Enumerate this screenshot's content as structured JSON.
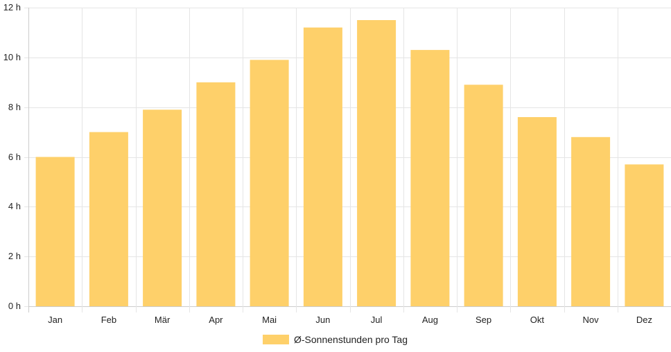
{
  "chart_data": {
    "type": "bar",
    "categories": [
      "Jan",
      "Feb",
      "Mär",
      "Apr",
      "Mai",
      "Jun",
      "Jul",
      "Aug",
      "Sep",
      "Okt",
      "Nov",
      "Dez"
    ],
    "series": [
      {
        "name": "Ø-Sonnenstunden pro Tag",
        "values": [
          6.0,
          7.0,
          7.9,
          9.0,
          9.9,
          11.2,
          11.5,
          10.3,
          8.9,
          7.6,
          6.8,
          5.7
        ],
        "color": "#fed06a"
      }
    ],
    "title": "",
    "xlabel": "",
    "ylabel": "",
    "ylim": [
      0,
      12
    ],
    "yticks": [
      0,
      2,
      4,
      6,
      8,
      10,
      12
    ],
    "ytick_labels": [
      "0 h",
      "2 h",
      "4 h",
      "6 h",
      "8 h",
      "10 h",
      "12 h"
    ],
    "grid": true,
    "legend_position": "bottom",
    "colors": {
      "grid": "#e5e5e5",
      "axis": "#cccccc",
      "text": "#222222"
    }
  }
}
